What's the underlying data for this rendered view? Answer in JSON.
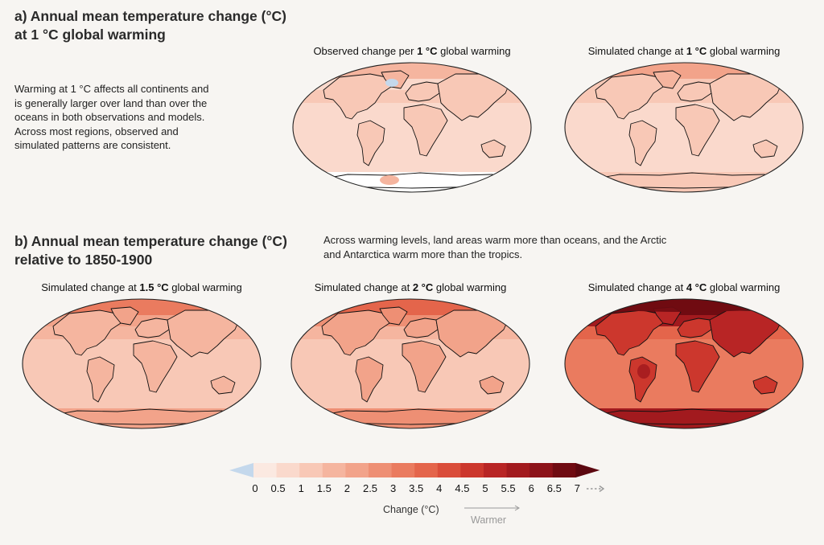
{
  "section_a": {
    "heading": [
      "a) Annual mean temperature change (°C)",
      "at 1 °C global warming"
    ],
    "description": [
      "Warming at 1 °C affects all continents and",
      "is generally larger over land than over the",
      "oceans in both observations and models.",
      "Across most regions, observed and",
      "simulated patterns are consistent."
    ]
  },
  "section_b": {
    "heading": [
      "b) Annual mean temperature change (°C)",
      "relative to 1850-1900"
    ],
    "description": [
      "Across warming levels, land areas warm more than oceans, and the Arctic",
      "and Antarctica warm more than the tropics."
    ]
  },
  "maps": [
    {
      "id": "obs1",
      "title_pre": "Observed change per ",
      "title_bold": "1 °C",
      "title_post": " global warming",
      "base_level": 1,
      "land_level": 2,
      "polar_level": 3,
      "observed": true
    },
    {
      "id": "sim1",
      "title_pre": "Simulated change at ",
      "title_bold": "1 °C",
      "title_post": " global warming",
      "base_level": 1,
      "land_level": 2,
      "polar_level": 4,
      "observed": false
    },
    {
      "id": "sim15",
      "title_pre": "Simulated change at ",
      "title_bold": "1.5 °C",
      "title_post": " global warming",
      "base_level": 2,
      "land_level": 3,
      "polar_level": 6,
      "observed": false
    },
    {
      "id": "sim2",
      "title_pre": "Simulated change at ",
      "title_bold": "2 °C",
      "title_post": " global warming",
      "base_level": 2,
      "land_level": 4,
      "polar_level": 7,
      "observed": false
    },
    {
      "id": "sim4",
      "title_pre": "Simulated change at ",
      "title_bold": "4 °C",
      "title_post": " global warming",
      "base_level": 6,
      "land_level": 9,
      "polar_level": 13,
      "observed": false
    }
  ],
  "colorbar": {
    "ticks": [
      "0",
      "0.5",
      "1",
      "1.5",
      "2",
      "2.5",
      "3",
      "3.5",
      "4",
      "4.5",
      "5",
      "5.5",
      "6",
      "6.5",
      "7"
    ],
    "label": "Change (°C)",
    "arrow_label": "Warmer",
    "negative_color": "#c4d8ec",
    "colors": [
      "#fbe9e1",
      "#fad9cc",
      "#f8c8b6",
      "#f5b59f",
      "#f2a38a",
      "#ee8f74",
      "#ea7b5f",
      "#e4654b",
      "#da4d3a",
      "#cc372d",
      "#b82525",
      "#a21a1e",
      "#8c1219",
      "#700b12"
    ]
  }
}
